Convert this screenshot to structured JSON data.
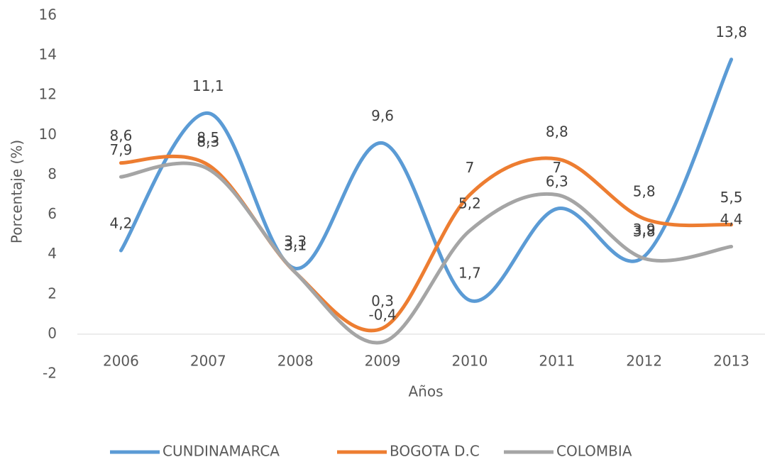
{
  "chart_data": {
    "type": "line",
    "x_label": "Años",
    "y_label": "Porcentaje (%)",
    "categories": [
      "2006",
      "2007",
      "2008",
      "2009",
      "2010",
      "2011",
      "2012",
      "2013"
    ],
    "series": [
      {
        "name": "CUNDINAMARCA",
        "color": "#5b9bd5",
        "values": [
          4.2,
          11.1,
          3.3,
          9.6,
          1.7,
          6.3,
          3.9,
          13.8
        ],
        "value_labels": [
          "4,2",
          "11,1",
          "3,3",
          "9,6",
          "1,7",
          "6,3",
          "3,9",
          "13,8"
        ]
      },
      {
        "name": "BOGOTA D.C",
        "color": "#ed7d31",
        "values": [
          8.6,
          8.5,
          3.1,
          0.3,
          7,
          8.8,
          5.8,
          5.5
        ],
        "value_labels": [
          "8,6",
          "8,5",
          "3,1",
          "0,3",
          "7",
          "8,8",
          "5,8",
          "5,5"
        ]
      },
      {
        "name": "COLOMBIA",
        "color": "#a5a5a5",
        "values": [
          7.9,
          8.3,
          3.1,
          -0.4,
          5.2,
          7,
          3.8,
          4.4
        ],
        "value_labels": [
          "7,9",
          "8,3",
          "3,1",
          "-0,4",
          "5,2",
          "7",
          "3,8",
          "4,4"
        ]
      }
    ],
    "ylim": [
      -2,
      16
    ],
    "yticks": [
      -2,
      0,
      2,
      4,
      6,
      8,
      10,
      12,
      14,
      16
    ],
    "grid": false,
    "legend": "bottom",
    "smooth": true
  }
}
